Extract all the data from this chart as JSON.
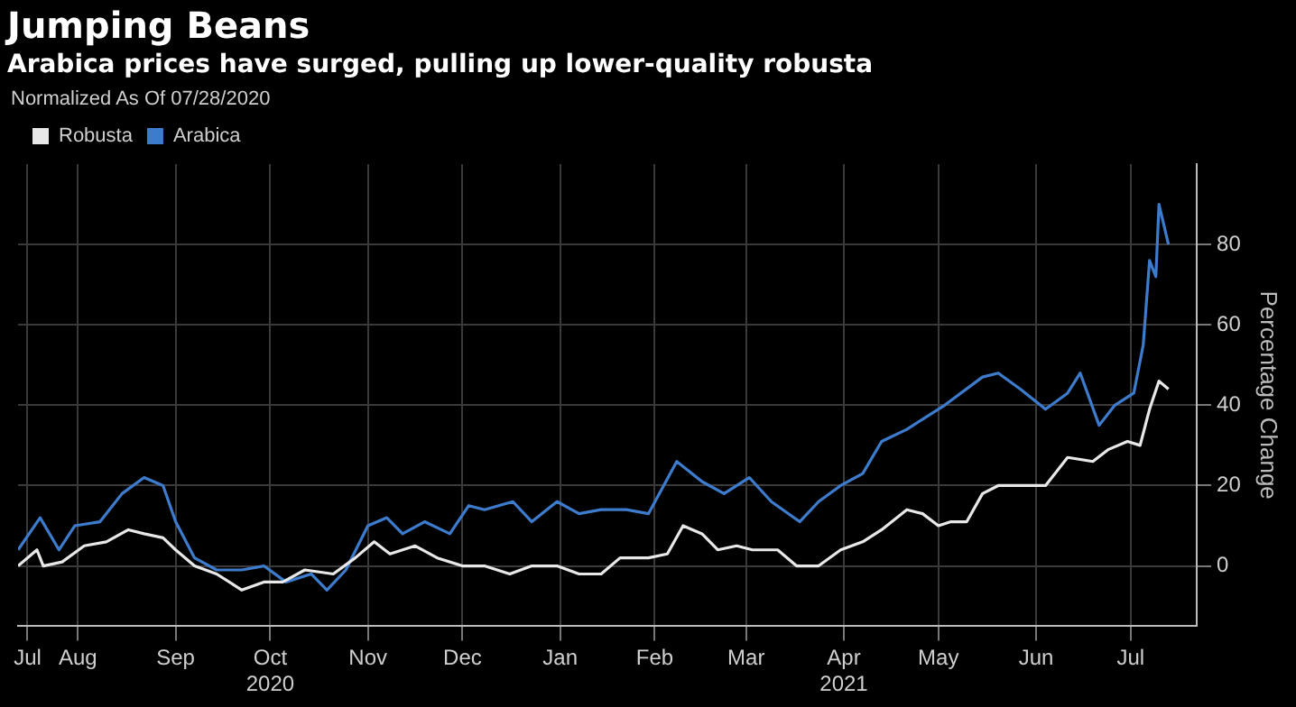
{
  "chart_data": {
    "type": "line",
    "title": "Jumping Beans",
    "subtitle": "Arabica prices have surged, pulling up lower-quality robusta",
    "ylabel": "Percentage Change",
    "legend_title": "Normalized As Of 07/28/2020",
    "legend": "top left",
    "grid": true,
    "marker": "none",
    "line_style": "solid",
    "xlim": [
      "2020-07-28",
      "2021-08-06"
    ],
    "ylim": [
      -15,
      100
    ],
    "yticks": [
      0,
      20,
      40,
      60,
      80
    ],
    "xticks": [
      {
        "value": "2020-07-31",
        "label": "Jul"
      },
      {
        "value": "2020-08-16",
        "label": "Aug"
      },
      {
        "value": "2020-09-16",
        "label": "Sep"
      },
      {
        "value": "2020-10-16",
        "label": "Oct\n2020"
      },
      {
        "value": "2020-11-16",
        "label": "Nov"
      },
      {
        "value": "2020-12-16",
        "label": "Dec"
      },
      {
        "value": "2021-01-16",
        "label": "Jan"
      },
      {
        "value": "2021-02-15",
        "label": "Feb"
      },
      {
        "value": "2021-03-16",
        "label": "Mar"
      },
      {
        "value": "2021-04-16",
        "label": "Apr\n2021"
      },
      {
        "value": "2021-05-16",
        "label": "May"
      },
      {
        "value": "2021-06-16",
        "label": "Jun"
      },
      {
        "value": "2021-07-16",
        "label": "Jul"
      }
    ],
    "series": [
      {
        "name": "Robusta",
        "color": "#e8e8e8",
        "x": [
          "2020-07-28",
          "2020-08-03",
          "2020-08-05",
          "2020-08-11",
          "2020-08-18",
          "2020-08-25",
          "2020-09-01",
          "2020-09-06",
          "2020-09-12",
          "2020-09-16",
          "2020-09-22",
          "2020-09-29",
          "2020-10-07",
          "2020-10-14",
          "2020-10-20",
          "2020-10-27",
          "2020-11-05",
          "2020-11-12",
          "2020-11-18",
          "2020-11-23",
          "2020-12-01",
          "2020-12-08",
          "2020-12-16",
          "2020-12-23",
          "2020-12-31",
          "2021-01-07",
          "2021-01-15",
          "2021-01-22",
          "2021-01-29",
          "2021-02-04",
          "2021-02-13",
          "2021-02-19",
          "2021-02-24",
          "2021-03-02",
          "2021-03-07",
          "2021-03-13",
          "2021-03-18",
          "2021-03-26",
          "2021-04-01",
          "2021-04-08",
          "2021-04-15",
          "2021-04-22",
          "2021-04-28",
          "2021-05-06",
          "2021-05-11",
          "2021-05-16",
          "2021-05-20",
          "2021-05-25",
          "2021-05-30",
          "2021-06-04",
          "2021-06-11",
          "2021-06-19",
          "2021-06-26",
          "2021-07-04",
          "2021-07-09",
          "2021-07-15",
          "2021-07-19",
          "2021-07-22",
          "2021-07-25",
          "2021-07-28"
        ],
        "values": [
          0,
          4,
          0,
          1,
          5,
          6,
          9,
          8,
          7,
          4,
          0,
          -2,
          -6,
          -4,
          -4,
          -1,
          -2,
          2,
          6,
          3,
          5,
          2,
          0,
          0,
          -2,
          0,
          0,
          -2,
          -2,
          2,
          2,
          3,
          10,
          8,
          4,
          5,
          4,
          4,
          0,
          0,
          4,
          6,
          9,
          14,
          13,
          10,
          11,
          11,
          18,
          20,
          20,
          20,
          27,
          26,
          29,
          31,
          30,
          39,
          46,
          44
        ]
      },
      {
        "name": "Arabica",
        "color": "#3d7ccc",
        "x": [
          "2020-07-28",
          "2020-08-04",
          "2020-08-10",
          "2020-08-15",
          "2020-08-23",
          "2020-08-30",
          "2020-09-06",
          "2020-09-12",
          "2020-09-16",
          "2020-09-22",
          "2020-09-29",
          "2020-10-07",
          "2020-10-14",
          "2020-10-21",
          "2020-10-29",
          "2020-11-03",
          "2020-11-09",
          "2020-11-16",
          "2020-11-22",
          "2020-11-27",
          "2020-12-04",
          "2020-12-12",
          "2020-12-18",
          "2020-12-23",
          "2021-01-01",
          "2021-01-07",
          "2021-01-15",
          "2021-01-22",
          "2021-01-29",
          "2021-02-06",
          "2021-02-13",
          "2021-02-22",
          "2021-03-02",
          "2021-03-09",
          "2021-03-17",
          "2021-03-24",
          "2021-04-02",
          "2021-04-08",
          "2021-04-15",
          "2021-04-22",
          "2021-04-28",
          "2021-05-06",
          "2021-05-18",
          "2021-05-30",
          "2021-06-04",
          "2021-06-11",
          "2021-06-19",
          "2021-06-26",
          "2021-06-30",
          "2021-07-06",
          "2021-07-11",
          "2021-07-17",
          "2021-07-20",
          "2021-07-22",
          "2021-07-24",
          "2021-07-25",
          "2021-07-28"
        ],
        "values": [
          4,
          12,
          4,
          10,
          11,
          18,
          22,
          20,
          11,
          2,
          -1,
          -1,
          0,
          -4,
          -2,
          -6,
          -1,
          10,
          12,
          8,
          11,
          8,
          15,
          14,
          16,
          11,
          16,
          13,
          14,
          14,
          13,
          26,
          21,
          18,
          22,
          16,
          11,
          16,
          20,
          23,
          31,
          34,
          40,
          47,
          48,
          44,
          39,
          43,
          48,
          35,
          40,
          43,
          55,
          76,
          72,
          90,
          80
        ]
      }
    ]
  }
}
